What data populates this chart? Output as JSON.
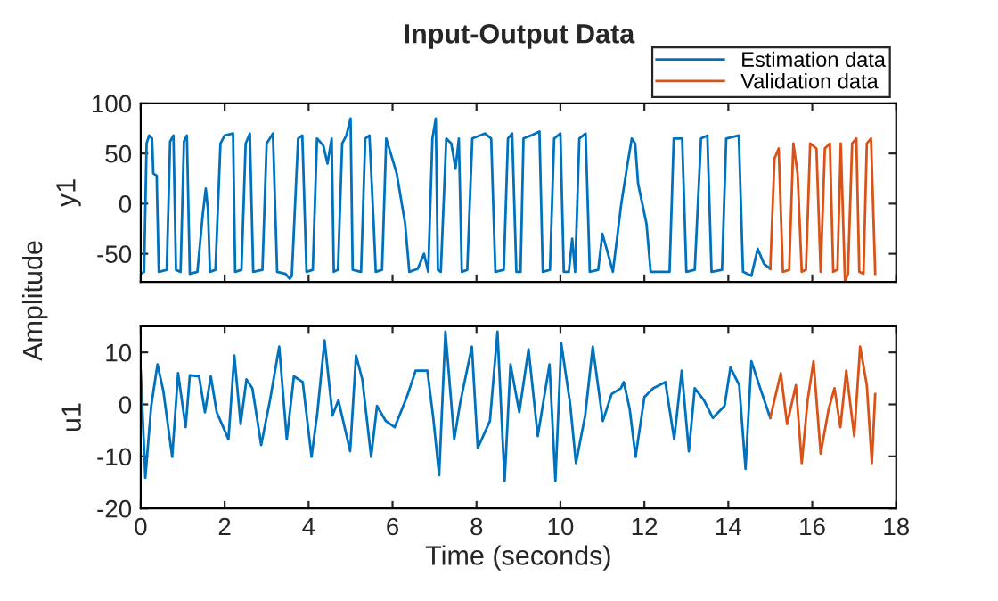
{
  "chart_data": [
    {
      "type": "line",
      "title": "Input-Output Data",
      "ylabel": "y1",
      "annotations": [
        "Amplitude"
      ],
      "xlim": [
        0,
        18
      ],
      "xticks": [
        0,
        2,
        4,
        6,
        8,
        10,
        12,
        14,
        16,
        18
      ],
      "ylim": [
        -78,
        100
      ],
      "yticks": [
        -50,
        0,
        50,
        100
      ],
      "tick_labels": "y",
      "grid": false,
      "legend": "top right",
      "marker": "none",
      "line_style": "solid",
      "series": [
        {
          "name": "Estimation data",
          "color": "#0072bd",
          "x": [
            0,
            0.08,
            0.14,
            0.2,
            0.27,
            0.3,
            0.38,
            0.43,
            0.62,
            0.7,
            0.78,
            0.84,
            0.95,
            1.03,
            1.1,
            1.17,
            1.35,
            1.48,
            1.55,
            1.6,
            1.65,
            1.78,
            1.9,
            2.0,
            2.2,
            2.25,
            2.4,
            2.5,
            2.6,
            2.68,
            2.9,
            3.0,
            3.15,
            3.25,
            3.45,
            3.55,
            3.6,
            3.75,
            3.85,
            3.95,
            4.1,
            4.2,
            4.35,
            4.45,
            4.55,
            4.6,
            4.7,
            4.8,
            4.9,
            5.0,
            5.05,
            5.25,
            5.35,
            5.45,
            5.55,
            5.6,
            5.75,
            5.85,
            6.1,
            6.3,
            6.4,
            6.6,
            6.75,
            6.85,
            6.95,
            7.03,
            7.08,
            7.15,
            7.28,
            7.4,
            7.5,
            7.58,
            7.65,
            7.78,
            7.9,
            8.2,
            8.35,
            8.45,
            8.65,
            8.75,
            8.85,
            8.95,
            9.05,
            9.12,
            9.3,
            9.5,
            9.58,
            9.75,
            9.85,
            10.0,
            10.08,
            10.2,
            10.28,
            10.35,
            10.45,
            10.6,
            10.7,
            10.9,
            11.0,
            11.1,
            11.25,
            11.45,
            11.6,
            11.7,
            11.78,
            11.85,
            12.05,
            12.15,
            12.6,
            12.7,
            12.9,
            13.0,
            13.2,
            13.35,
            13.5,
            13.6,
            13.85,
            13.95,
            14.25,
            14.35,
            14.55,
            14.7,
            14.85,
            15.0
          ],
          "values": [
            -70,
            -68,
            60,
            68,
            65,
            30,
            28,
            -68,
            -66,
            62,
            68,
            -66,
            -68,
            62,
            68,
            -70,
            -68,
            -10,
            15,
            -5,
            -68,
            -66,
            60,
            68,
            70,
            -68,
            -66,
            60,
            70,
            -68,
            -66,
            60,
            70,
            -68,
            -70,
            -75,
            -72,
            65,
            68,
            -68,
            -66,
            65,
            58,
            40,
            65,
            -68,
            -66,
            60,
            68,
            85,
            -66,
            -68,
            65,
            68,
            -20,
            -68,
            -66,
            65,
            30,
            -20,
            -68,
            -65,
            -50,
            -68,
            65,
            85,
            -66,
            -68,
            65,
            60,
            35,
            65,
            -68,
            -66,
            65,
            70,
            65,
            -68,
            -66,
            65,
            70,
            -68,
            -68,
            65,
            68,
            72,
            -68,
            -66,
            65,
            70,
            -68,
            -68,
            -35,
            -68,
            65,
            70,
            -68,
            -66,
            -30,
            -45,
            -68,
            0,
            40,
            65,
            60,
            20,
            -20,
            -68,
            -68,
            65,
            65,
            -68,
            -66,
            65,
            68,
            -68,
            -66,
            65,
            68,
            -68,
            -72,
            -45,
            -60,
            -65
          ]
        },
        {
          "name": "Validation data",
          "color": "#d95319",
          "x": [
            15.0,
            15.1,
            15.2,
            15.3,
            15.45,
            15.55,
            15.65,
            15.75,
            15.85,
            15.95,
            16.1,
            16.2,
            16.3,
            16.42,
            16.5,
            16.6,
            16.68,
            16.78,
            16.85,
            16.95,
            17.05,
            17.12,
            17.22,
            17.3,
            17.4,
            17.5
          ],
          "values": [
            -65,
            45,
            55,
            -68,
            -66,
            60,
            30,
            -68,
            -66,
            60,
            55,
            -68,
            55,
            60,
            -68,
            -66,
            60,
            -78,
            -70,
            60,
            65,
            -68,
            -70,
            60,
            65,
            -70
          ]
        }
      ]
    },
    {
      "type": "line",
      "xlabel": "Time (seconds)",
      "ylabel": "u1",
      "xlim": [
        0,
        18
      ],
      "xticks": [
        0,
        2,
        4,
        6,
        8,
        10,
        12,
        14,
        16,
        18
      ],
      "ylim": [
        -20,
        15
      ],
      "yticks": [
        -20,
        -10,
        0,
        10
      ],
      "grid": false,
      "marker": "none",
      "line_style": "solid",
      "series": [
        {
          "color": "#0072bd",
          "x": [
            0,
            0.11,
            0.25,
            0.4,
            0.54,
            0.75,
            0.89,
            1.07,
            1.17,
            1.39,
            1.53,
            1.67,
            1.81,
            2.09,
            2.23,
            2.38,
            2.52,
            2.66,
            2.87,
            3.08,
            3.3,
            3.48,
            3.65,
            3.86,
            4.07,
            4.21,
            4.38,
            4.57,
            4.71,
            4.99,
            5.13,
            5.28,
            5.49,
            5.63,
            5.84,
            6.05,
            6.34,
            6.55,
            6.83,
            6.97,
            7.11,
            7.26,
            7.47,
            7.61,
            7.89,
            8.03,
            8.32,
            8.5,
            8.67,
            8.81,
            9.02,
            9.24,
            9.46,
            9.74,
            9.88,
            10.02,
            10.23,
            10.37,
            10.59,
            10.77,
            11.01,
            11.22,
            11.44,
            11.51,
            11.65,
            11.79,
            12.0,
            12.21,
            12.5,
            12.71,
            12.89,
            13.06,
            13.2,
            13.42,
            13.63,
            13.91,
            14.05,
            14.26,
            14.41,
            14.55,
            14.76,
            15.0
          ],
          "values": [
            6.5,
            -14.1,
            -0.3,
            7.7,
            2.5,
            -10.1,
            6.0,
            -4.4,
            5.6,
            5.4,
            -1.5,
            5.4,
            -1.5,
            -6.7,
            9.4,
            -3.8,
            4.8,
            3.1,
            -7.8,
            0.8,
            11.1,
            -6.7,
            5.4,
            4.3,
            -10.1,
            -1.5,
            12.3,
            -2.1,
            0.8,
            -9.0,
            9.4,
            4.8,
            -10.1,
            -0.3,
            -3.2,
            -4.4,
            1.4,
            6.5,
            6.5,
            -2.6,
            -13.6,
            14.0,
            -6.7,
            0.2,
            11.1,
            -8.4,
            -3.2,
            14.0,
            -14.7,
            7.7,
            -1.5,
            10.6,
            -6.1,
            7.7,
            -14.7,
            11.7,
            0.2,
            -11.3,
            -2.1,
            11.1,
            -3.2,
            2.0,
            3.1,
            4.3,
            -0.9,
            -10.1,
            1.4,
            3.1,
            4.3,
            -6.7,
            6.5,
            -9.0,
            3.1,
            0.8,
            -2.6,
            -0.3,
            7.1,
            3.7,
            -12.4,
            8.3,
            3.1,
            -2.6
          ]
        },
        {
          "color": "#d95319",
          "x": [
            15.0,
            15.25,
            15.4,
            15.61,
            15.75,
            15.89,
            16.03,
            16.2,
            16.39,
            16.53,
            16.67,
            16.81,
            17.0,
            17.14,
            17.3,
            17.42,
            17.5
          ],
          "values": [
            -2.6,
            6.0,
            -3.8,
            3.7,
            -11.3,
            0.8,
            8.3,
            -9.5,
            -0.9,
            3.1,
            -4.4,
            6.5,
            -6.1,
            11.1,
            3.7,
            -11.3,
            2.0
          ]
        }
      ]
    }
  ]
}
